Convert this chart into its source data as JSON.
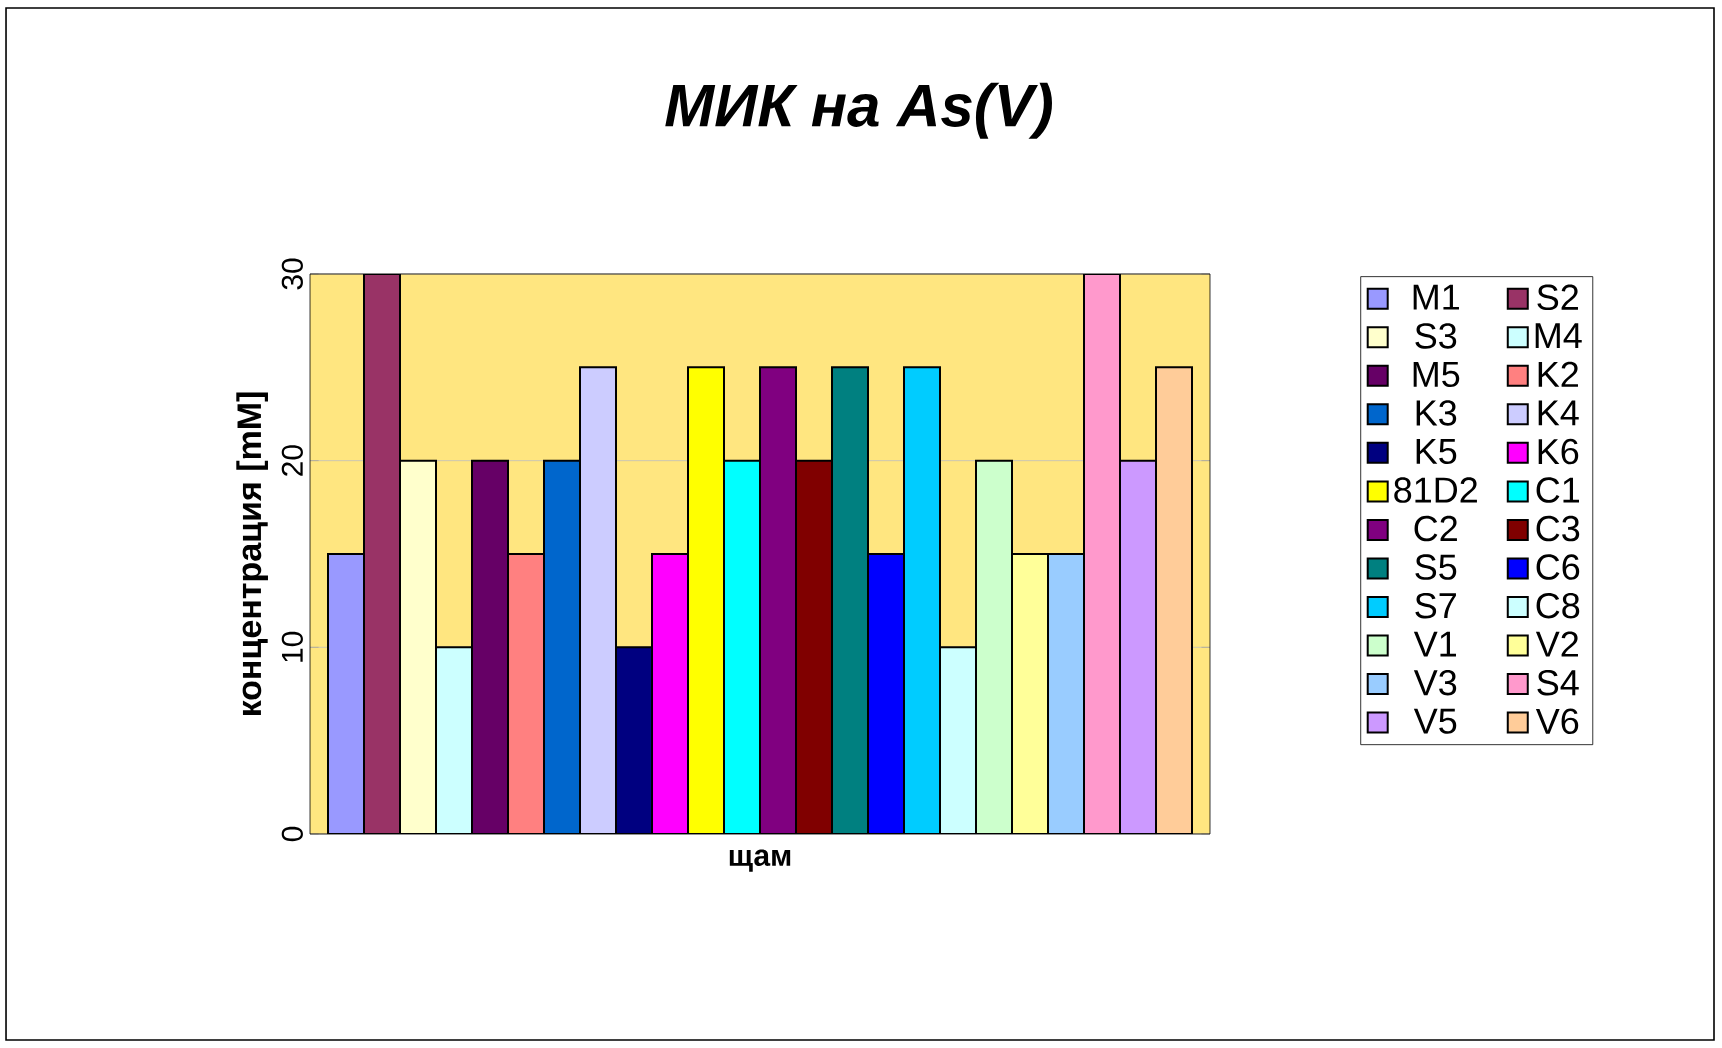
{
  "chart_data": {
    "type": "bar",
    "title": "МИК на As(V)",
    "ylabel": "концентрация  [mM]",
    "categories": [
      "щам"
    ],
    "series": [
      {
        "name": "M1",
        "color": "#9999ff",
        "values": [
          15
        ]
      },
      {
        "name": "S2",
        "color": "#993366",
        "values": [
          30
        ]
      },
      {
        "name": "S3",
        "color": "#ffffcc",
        "values": [
          20
        ]
      },
      {
        "name": "M4",
        "color": "#ccffff",
        "values": [
          10
        ]
      },
      {
        "name": "M5",
        "color": "#660066",
        "values": [
          20
        ]
      },
      {
        "name": "K2",
        "color": "#ff8080",
        "values": [
          15
        ]
      },
      {
        "name": "K3",
        "color": "#0066cc",
        "values": [
          20
        ]
      },
      {
        "name": "K4",
        "color": "#ccccff",
        "values": [
          25
        ]
      },
      {
        "name": "K5",
        "color": "#000080",
        "values": [
          10
        ]
      },
      {
        "name": "K6",
        "color": "#ff00ff",
        "values": [
          15
        ]
      },
      {
        "name": "81D2",
        "color": "#ffff00",
        "values": [
          25
        ]
      },
      {
        "name": "C1",
        "color": "#00ffff",
        "values": [
          20
        ]
      },
      {
        "name": "C2",
        "color": "#800080",
        "values": [
          25
        ]
      },
      {
        "name": "C3",
        "color": "#800000",
        "values": [
          20
        ]
      },
      {
        "name": "S5",
        "color": "#008080",
        "values": [
          25
        ]
      },
      {
        "name": "C6",
        "color": "#0000ff",
        "values": [
          15
        ]
      },
      {
        "name": "S7",
        "color": "#00ccff",
        "values": [
          25
        ]
      },
      {
        "name": "C8",
        "color": "#ccffff",
        "values": [
          10
        ]
      },
      {
        "name": "V1",
        "color": "#ccffcc",
        "values": [
          20
        ]
      },
      {
        "name": "V2",
        "color": "#ffff99",
        "values": [
          15
        ]
      },
      {
        "name": "V3",
        "color": "#99ccff",
        "values": [
          15
        ]
      },
      {
        "name": "S4",
        "color": "#ff99cc",
        "values": [
          30
        ]
      },
      {
        "name": "V5",
        "color": "#cc99ff",
        "values": [
          20
        ]
      },
      {
        "name": "V6",
        "color": "#ffcc99",
        "values": [
          25
        ]
      }
    ],
    "ylim": [
      0,
      30
    ],
    "yticks": [
      0,
      10,
      20,
      30
    ],
    "grid": "y",
    "legend": "right"
  }
}
